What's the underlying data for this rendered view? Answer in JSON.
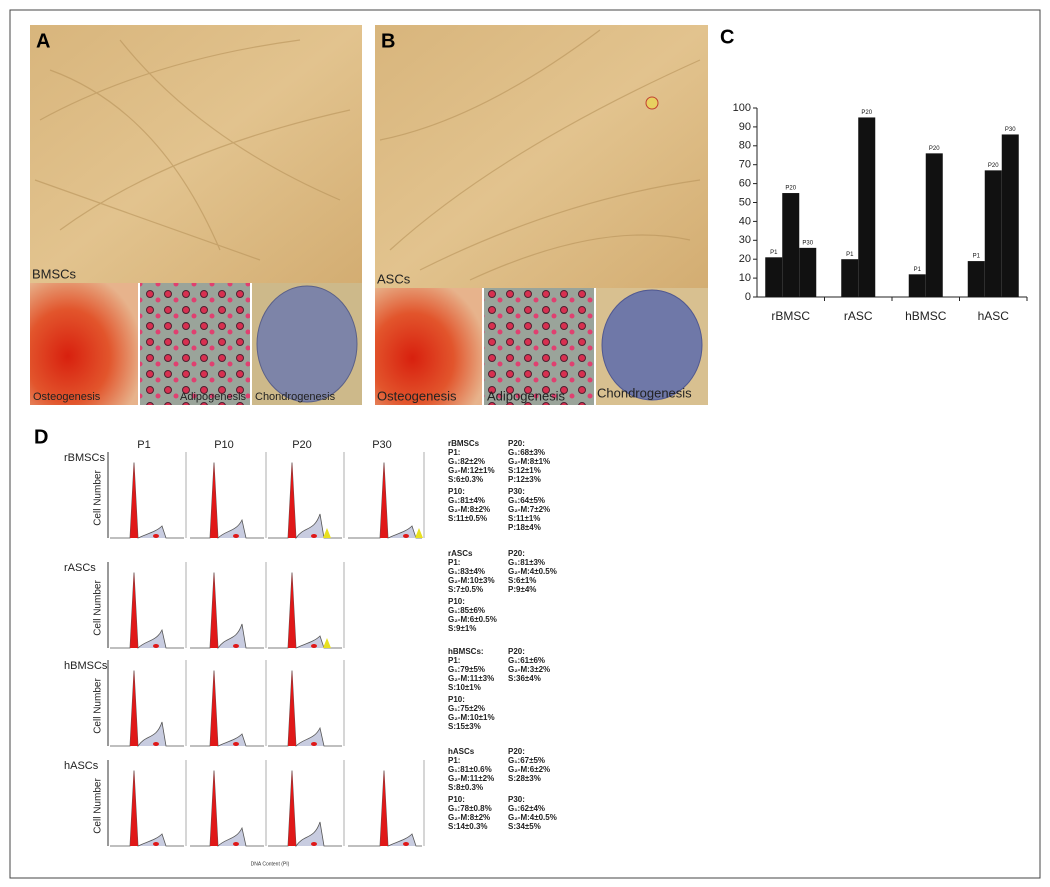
{
  "panels": {
    "a": "A",
    "b": "B",
    "c": "C",
    "d": "D"
  },
  "panel_a": {
    "caption": "BMSCs",
    "tiles": [
      "Osteogenesis",
      "Adipogenesis",
      "Chondrogenesis"
    ]
  },
  "panel_b": {
    "caption": "ASCs",
    "tiles": [
      "Osteogenesis",
      "Adipogenesis",
      "Chondrogenesis"
    ]
  },
  "chart_data": {
    "type": "bar",
    "categories": [
      "rBMSC",
      "rASC",
      "hBMSC",
      "hASC"
    ],
    "series": [
      {
        "name": "P1",
        "color": "#111111",
        "values": [
          21,
          20,
          12,
          19
        ]
      },
      {
        "name": "P20",
        "color": "#111111",
        "values": [
          55,
          95,
          76,
          67
        ]
      },
      {
        "name": "P30",
        "color": "#111111",
        "values": [
          26,
          null,
          null,
          86
        ]
      }
    ],
    "ylim": [
      0,
      100
    ],
    "yticks": [
      0,
      10,
      20,
      30,
      40,
      50,
      60,
      70,
      80,
      90,
      100
    ]
  },
  "panel_d": {
    "columns": [
      "P1",
      "P10",
      "P20",
      "P30"
    ],
    "y_label": "Cell Number",
    "x_label": "DNA Content (PI)",
    "rows": [
      {
        "label": "rBMSCs",
        "stats_title": "rBMSCs",
        "histograms": 4,
        "blocks": [
          {
            "title": "P1:",
            "lines": [
              "G₁:82±2%",
              "G₂-M:12±1%",
              "S:6±0.3%"
            ]
          },
          {
            "title": "P10:",
            "lines": [
              "G₁:81±4%",
              "G₂-M:8±2%",
              "S:11±0.5%"
            ]
          },
          {
            "title": "P20:",
            "lines": [
              "G₁:68±3%",
              "G₂-M:8±1%",
              "S:12±1%",
              "P:12±3%"
            ]
          },
          {
            "title": "P30:",
            "lines": [
              "G₁:64±5%",
              "G₂-M:7±2%",
              "S:11±1%",
              "P:18±4%"
            ]
          }
        ]
      },
      {
        "label": "rASCs",
        "stats_title": "rASCs",
        "histograms": 3,
        "blocks": [
          {
            "title": "P1:",
            "lines": [
              "G₁:83±4%",
              "G₂-M:10±3%",
              "S:7±0.5%"
            ]
          },
          {
            "title": "P10:",
            "lines": [
              "G₁:85±6%",
              "G₂-M:6±0.5%",
              "S:9±1%"
            ]
          },
          {
            "title": "P20:",
            "lines": [
              "G₁:81±3%",
              "G₂-M:4±0.5%",
              "S:6±1%",
              "P:9±4%"
            ]
          }
        ]
      },
      {
        "label": "hBMSCs",
        "stats_title": "hBMSCs:",
        "histograms": 3,
        "blocks": [
          {
            "title": "P1:",
            "lines": [
              "G₁:79±5%",
              "G₂-M:11±3%",
              "S:10±1%"
            ]
          },
          {
            "title": "P10:",
            "lines": [
              "G₁:75±2%",
              "G₂-M:10±1%",
              "S:15±3%"
            ]
          },
          {
            "title": "P20:",
            "lines": [
              "G₁:61±6%",
              "G₂-M:3±2%",
              "S:36±4%"
            ]
          }
        ]
      },
      {
        "label": "hASCs",
        "stats_title": "hASCs",
        "histograms": 4,
        "blocks": [
          {
            "title": "P1:",
            "lines": [
              "G₁:81±0.6%",
              "G₂-M:11±2%",
              "S:8±0.3%"
            ]
          },
          {
            "title": "P10:",
            "lines": [
              "G₁:78±0.8%",
              "G₂-M:8±2%",
              "S:14±0.3%"
            ]
          },
          {
            "title": "P20:",
            "lines": [
              "G₁:67±5%",
              "G₂-M:6±2%",
              "S:28±3%"
            ]
          },
          {
            "title": "P30:",
            "lines": [
              "G₁:62±4%",
              "G₂-M:4±0.5%",
              "S:34±5%"
            ]
          }
        ]
      }
    ]
  }
}
